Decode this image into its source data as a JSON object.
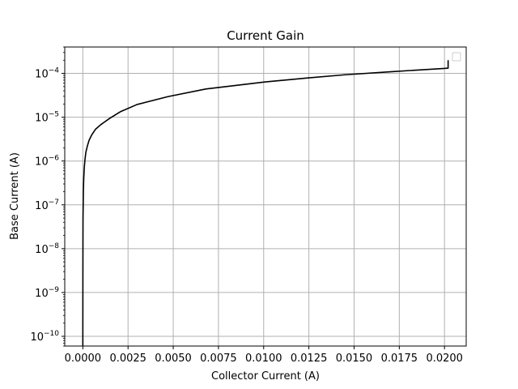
{
  "chart_data": {
    "type": "line",
    "title": "Current Gain",
    "xlabel": "Collector Current (A)",
    "ylabel": "Base Current (A)",
    "xscale": "linear",
    "yscale": "log",
    "xlim": [
      -0.001,
      0.0212
    ],
    "ylim": [
      6e-11,
      0.0004
    ],
    "grid": true,
    "legend": {
      "placement": "top-right",
      "entries": []
    },
    "x_ticks": [
      {
        "value": 0.0,
        "label": "0.0000"
      },
      {
        "value": 0.0025,
        "label": "0.0025"
      },
      {
        "value": 0.005,
        "label": "0.0050"
      },
      {
        "value": 0.0075,
        "label": "0.0075"
      },
      {
        "value": 0.01,
        "label": "0.0100"
      },
      {
        "value": 0.0125,
        "label": "0.0125"
      },
      {
        "value": 0.015,
        "label": "0.0150"
      },
      {
        "value": 0.0175,
        "label": "0.0175"
      },
      {
        "value": 0.02,
        "label": "0.0200"
      }
    ],
    "y_ticks": [
      {
        "value": 1e-10,
        "base": "10",
        "exp": "−10"
      },
      {
        "value": 1e-09,
        "base": "10",
        "exp": "−9"
      },
      {
        "value": 1e-08,
        "base": "10",
        "exp": "−8"
      },
      {
        "value": 1e-07,
        "base": "10",
        "exp": "−7"
      },
      {
        "value": 1e-06,
        "base": "10",
        "exp": "−6"
      },
      {
        "value": 1e-05,
        "base": "10",
        "exp": "−5"
      },
      {
        "value": 0.0001,
        "base": "10",
        "exp": "−4"
      }
    ],
    "series": [
      {
        "color": "#000000",
        "points": [
          [
            0.0,
            6e-11
          ],
          [
            5e-07,
            1e-10
          ],
          [
            2e-06,
            1e-09
          ],
          [
            6e-06,
            1e-08
          ],
          [
            1e-05,
            5e-08
          ],
          [
            2e-05,
            1e-07
          ],
          [
            3e-05,
            2e-07
          ],
          [
            5e-05,
            4e-07
          ],
          [
            8e-05,
            7e-07
          ],
          [
            0.00012,
            1.1e-06
          ],
          [
            0.00017,
            1.6e-06
          ],
          [
            0.00025,
            2.2e-06
          ],
          [
            0.00035,
            3e-06
          ],
          [
            0.0005,
            4e-06
          ],
          [
            0.0007,
            5.3e-06
          ],
          [
            0.001,
            6.8e-06
          ],
          [
            0.0015,
            9.5e-06
          ],
          [
            0.0021,
            1.35e-05
          ],
          [
            0.003,
            1.95e-05
          ],
          [
            0.0047,
            2.95e-05
          ],
          [
            0.0068,
            4.4e-05
          ],
          [
            0.0101,
            6.4e-05
          ],
          [
            0.0125,
            7.9e-05
          ],
          [
            0.0145,
            9.3e-05
          ],
          [
            0.017,
            0.000109
          ],
          [
            0.02,
            0.00013
          ],
          [
            0.0202,
            0.000132
          ],
          [
            0.0202,
            0.0002
          ]
        ]
      }
    ]
  },
  "colors": {
    "line": "#000000",
    "grid": "#b0b0b0",
    "axes": "#000000",
    "background": "#ffffff"
  }
}
